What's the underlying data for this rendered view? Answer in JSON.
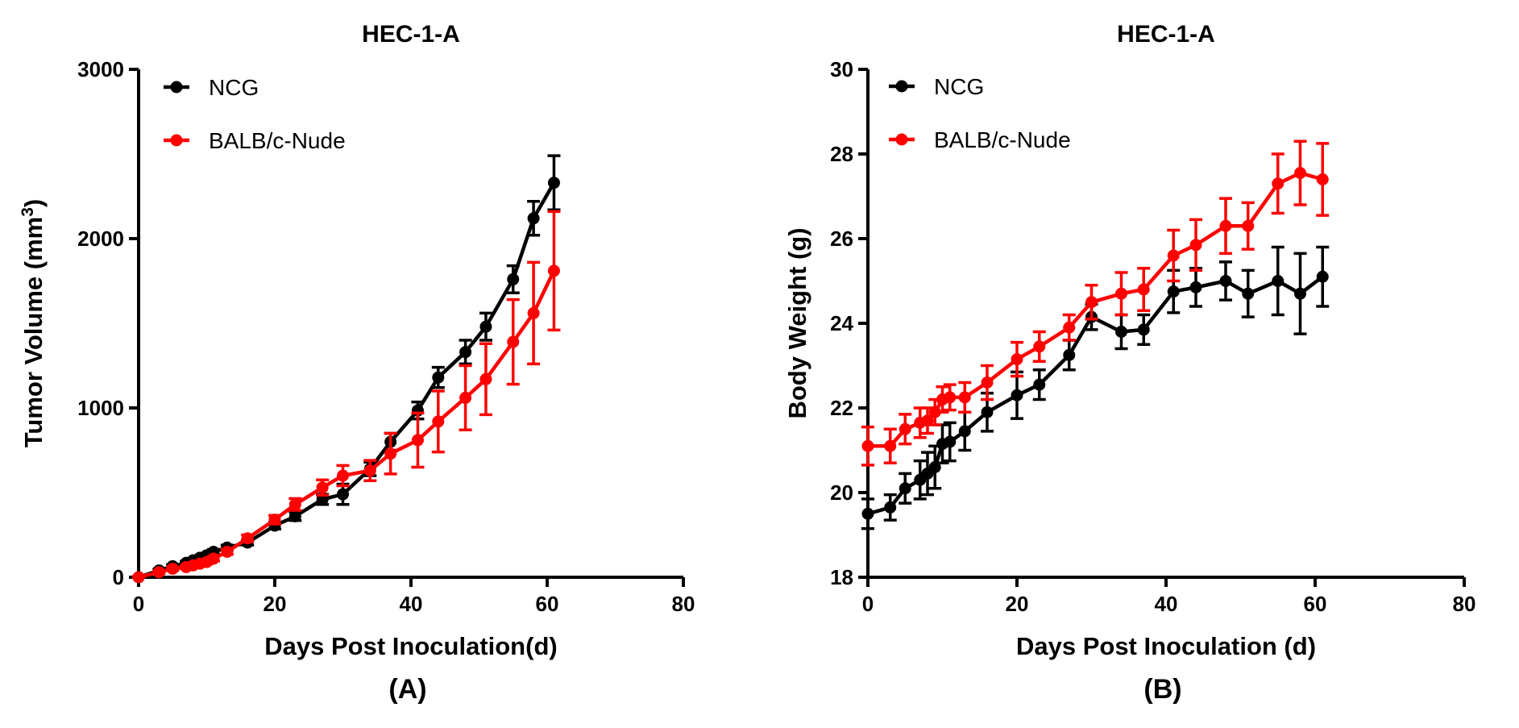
{
  "colors": {
    "NCG": "#000000",
    "BALB/c-Nude": "#ff0000",
    "axis": "#000000"
  },
  "chart_data": [
    {
      "type": "line",
      "title": "HEC-1-A",
      "xlabel": "Days Post Inoculation(d)",
      "ylabel": "Tumor Volume (mm",
      "ylabel_sup": "3",
      "ylabel_end": ")",
      "panel_label": "(A)",
      "xlim": [
        0,
        80
      ],
      "ylim": [
        0,
        3000
      ],
      "xticks": [
        0,
        20,
        40,
        60,
        80
      ],
      "yticks": [
        0,
        1000,
        2000,
        3000
      ],
      "legend_position": "top-left",
      "series": [
        {
          "name": "NCG",
          "color": "#000000",
          "x": [
            0,
            3,
            5,
            7,
            8,
            9,
            10,
            11,
            13,
            16,
            20,
            23,
            27,
            30,
            34,
            37,
            41,
            44,
            48,
            51,
            55,
            58,
            61
          ],
          "y": [
            0,
            40,
            65,
            85,
            100,
            115,
            130,
            150,
            175,
            205,
            305,
            360,
            460,
            490,
            640,
            800,
            985,
            1180,
            1330,
            1480,
            1760,
            2120,
            2330
          ],
          "err": [
            5,
            8,
            10,
            10,
            10,
            12,
            12,
            14,
            15,
            15,
            20,
            25,
            30,
            60,
            40,
            50,
            50,
            60,
            70,
            80,
            80,
            100,
            160
          ]
        },
        {
          "name": "BALB/c-Nude",
          "color": "#ff0000",
          "x": [
            0,
            3,
            5,
            7,
            8,
            9,
            10,
            11,
            13,
            16,
            20,
            23,
            27,
            30,
            34,
            37,
            41,
            44,
            48,
            51,
            55,
            58,
            61
          ],
          "y": [
            0,
            30,
            50,
            60,
            70,
            80,
            90,
            110,
            150,
            230,
            340,
            430,
            530,
            600,
            630,
            730,
            810,
            920,
            1060,
            1170,
            1390,
            1560,
            1810
          ],
          "err": [
            5,
            8,
            10,
            10,
            10,
            10,
            12,
            14,
            15,
            20,
            25,
            35,
            45,
            60,
            60,
            120,
            160,
            180,
            190,
            210,
            250,
            300,
            350
          ]
        }
      ]
    },
    {
      "type": "line",
      "title": "HEC-1-A",
      "xlabel": "Days Post Inoculation (d)",
      "ylabel": "Body Weight (g)",
      "panel_label": "(B)",
      "xlim": [
        0,
        80
      ],
      "ylim": [
        18,
        30
      ],
      "xticks": [
        0,
        20,
        40,
        60,
        80
      ],
      "yticks": [
        18,
        20,
        22,
        24,
        26,
        28,
        30
      ],
      "legend_position": "top-left",
      "series": [
        {
          "name": "NCG",
          "color": "#000000",
          "x": [
            0,
            3,
            5,
            7,
            8,
            9,
            10,
            11,
            13,
            16,
            20,
            23,
            27,
            30,
            34,
            37,
            41,
            44,
            48,
            51,
            55,
            58,
            61
          ],
          "y": [
            19.5,
            19.65,
            20.1,
            20.3,
            20.45,
            20.6,
            21.15,
            21.2,
            21.45,
            21.9,
            22.3,
            22.55,
            23.25,
            24.15,
            23.8,
            23.85,
            24.75,
            24.85,
            25.0,
            24.7,
            25.0,
            24.7,
            25.1
          ],
          "err": [
            0.35,
            0.3,
            0.35,
            0.45,
            0.5,
            0.5,
            0.45,
            0.45,
            0.45,
            0.45,
            0.55,
            0.35,
            0.35,
            0.3,
            0.4,
            0.35,
            0.5,
            0.45,
            0.45,
            0.55,
            0.8,
            0.95,
            0.7
          ]
        },
        {
          "name": "BALB/c-Nude",
          "color": "#ff0000",
          "x": [
            0,
            3,
            5,
            7,
            8,
            9,
            10,
            11,
            13,
            16,
            20,
            23,
            27,
            30,
            34,
            37,
            41,
            44,
            48,
            51,
            55,
            58,
            61
          ],
          "y": [
            21.1,
            21.1,
            21.5,
            21.65,
            21.7,
            21.9,
            22.2,
            22.25,
            22.25,
            22.6,
            23.15,
            23.45,
            23.9,
            24.5,
            24.7,
            24.8,
            25.6,
            25.85,
            26.3,
            26.3,
            27.3,
            27.55,
            27.4
          ],
          "err": [
            0.45,
            0.4,
            0.35,
            0.35,
            0.3,
            0.3,
            0.3,
            0.3,
            0.35,
            0.4,
            0.4,
            0.35,
            0.3,
            0.4,
            0.5,
            0.5,
            0.6,
            0.6,
            0.65,
            0.55,
            0.7,
            0.75,
            0.85
          ]
        }
      ]
    }
  ]
}
